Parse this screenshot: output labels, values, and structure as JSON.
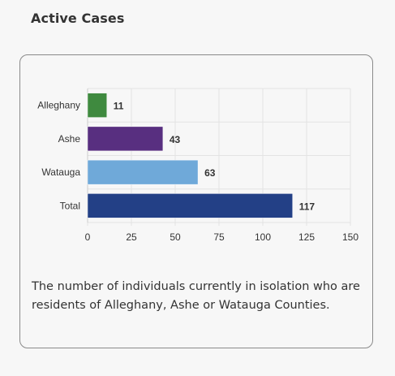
{
  "heading": "Active Cases",
  "caption": "The number of individuals currently in isolation who are residents of Alleghany, Ashe or Watauga Counties.",
  "chart_data": {
    "type": "bar",
    "orientation": "horizontal",
    "categories": [
      "Alleghany",
      "Ashe",
      "Watauga",
      "Total"
    ],
    "values": [
      11,
      43,
      63,
      117
    ],
    "colors": [
      "#3f8a3f",
      "#582f80",
      "#6fa9d9",
      "#234086"
    ],
    "xlim": [
      0,
      150
    ],
    "xticks": [
      0,
      25,
      50,
      75,
      100,
      125,
      150
    ],
    "grid": true,
    "data_labels": true,
    "legend": "none"
  }
}
